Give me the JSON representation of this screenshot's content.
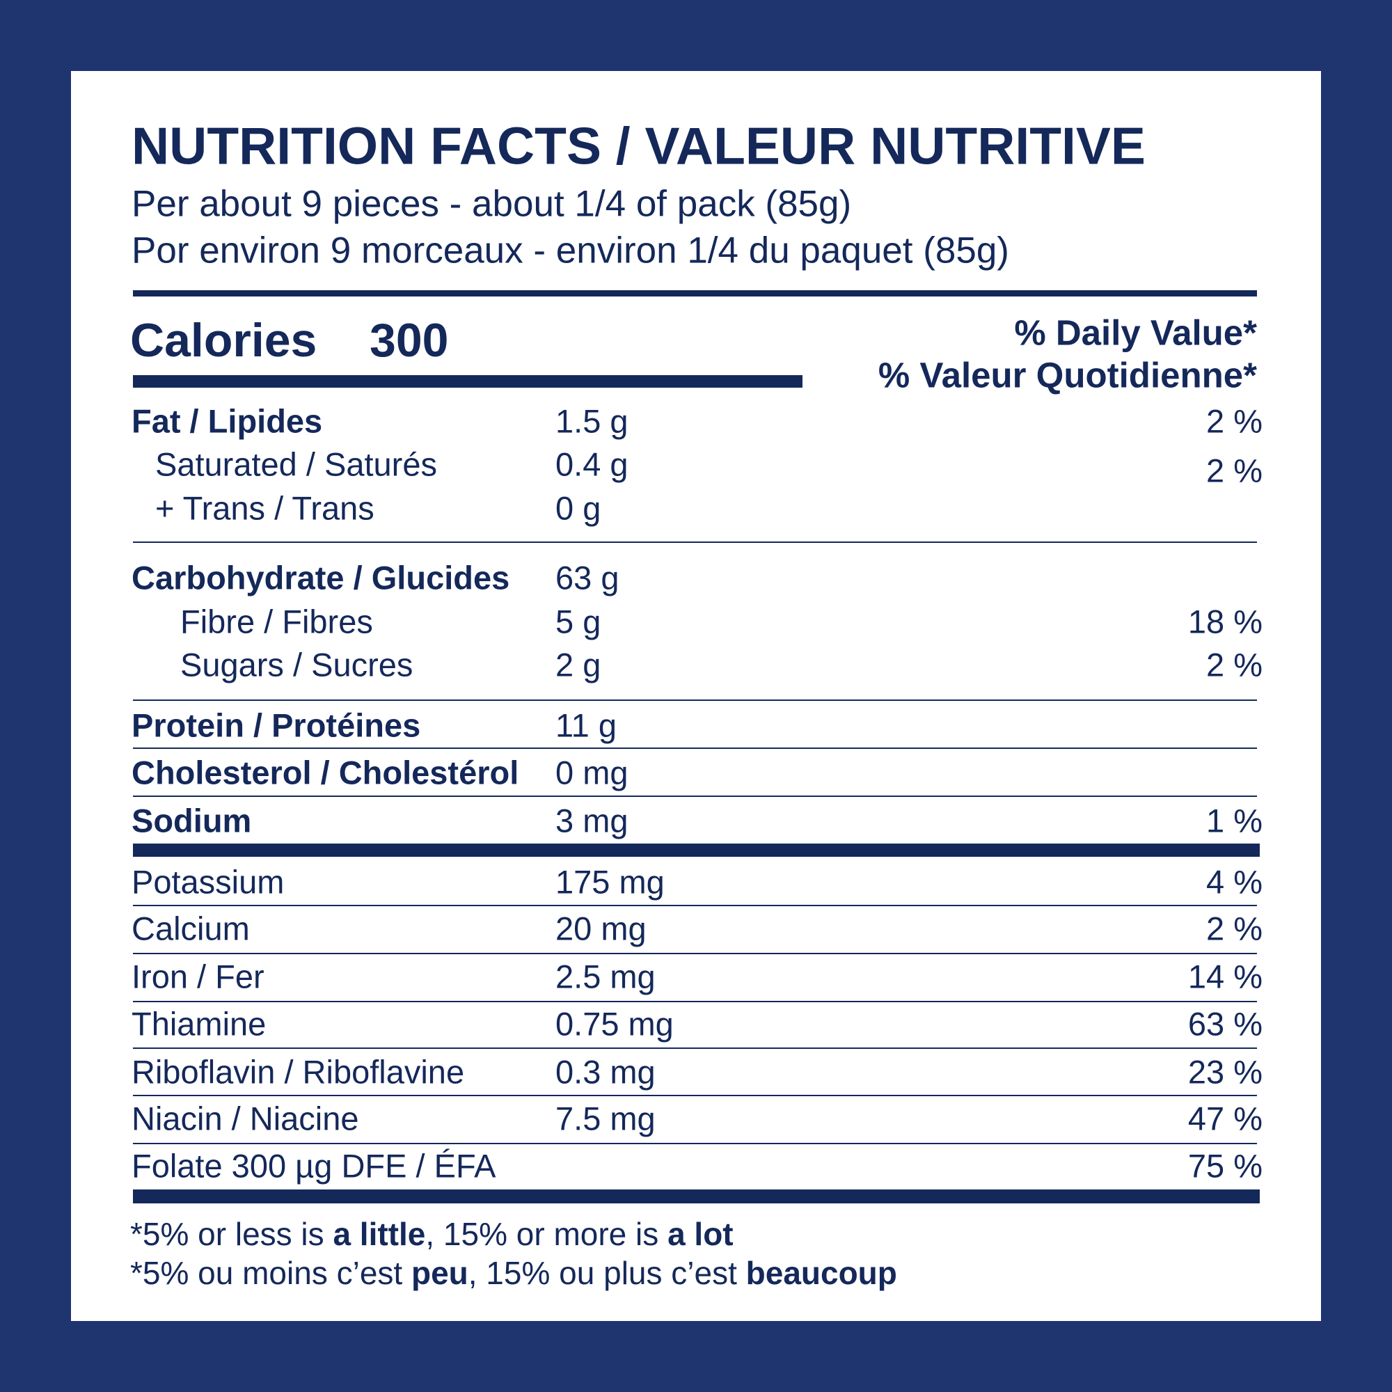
{
  "header": {
    "title": "NUTRITION FACTS / VALEUR NUTRITIVE",
    "serving": [
      "Per about 9 pieces - about 1/4 of pack (85g)",
      "Por environ 9 morceaux - environ 1/4 du paquet (85g)"
    ]
  },
  "calories": {
    "label": "Calories",
    "value": "300"
  },
  "daily_value_heading": [
    "% Daily Value*",
    "% Valeur Quotidienne*"
  ],
  "rows": [
    {
      "label": "Fat / Lipides",
      "amount": "1.5 g",
      "dv": "2 %"
    },
    {
      "label": "Saturated / Saturés",
      "amount": "0.4 g",
      "dv": "2 %"
    },
    {
      "label": "+ Trans / Trans",
      "amount": "0 g"
    },
    {
      "label": "Carbohydrate / Glucides",
      "amount": "63 g"
    },
    {
      "label": "Fibre / Fibres",
      "amount": "5 g",
      "dv": "18 %"
    },
    {
      "label": "Sugars / Sucres",
      "amount": "2 g",
      "dv": "2 %"
    },
    {
      "label": "Protein / Protéines",
      "amount": "11 g"
    },
    {
      "label": "Cholesterol / Cholestérol",
      "amount": "0 mg"
    },
    {
      "label": "Sodium",
      "amount": "3 mg",
      "dv": "1 %"
    },
    {
      "label": "Potassium",
      "amount": "175 mg",
      "dv": "4 %"
    },
    {
      "label": "Calcium",
      "amount": "20 mg",
      "dv": "2 %"
    },
    {
      "label": "Iron / Fer",
      "amount": "2.5 mg",
      "dv": "14 %"
    },
    {
      "label": "Thiamine",
      "amount": "0.75 mg",
      "dv": "63 %"
    },
    {
      "label": "Riboflavin / Riboflavine",
      "amount": "0.3 mg",
      "dv": "23 %"
    },
    {
      "label": "Niacin / Niacine",
      "amount": "7.5 mg",
      "dv": "47 %"
    },
    {
      "label": "Folate 300 µg DFE / ÉFA",
      "dv": "75 %"
    }
  ],
  "footnote": [
    [
      "*5% or less is ",
      "a little",
      ", 15% or more is ",
      "a lot"
    ],
    [
      "*5% ou moins c’est ",
      "peu",
      ", 15% ou plus c’est ",
      "beaucoup"
    ]
  ]
}
